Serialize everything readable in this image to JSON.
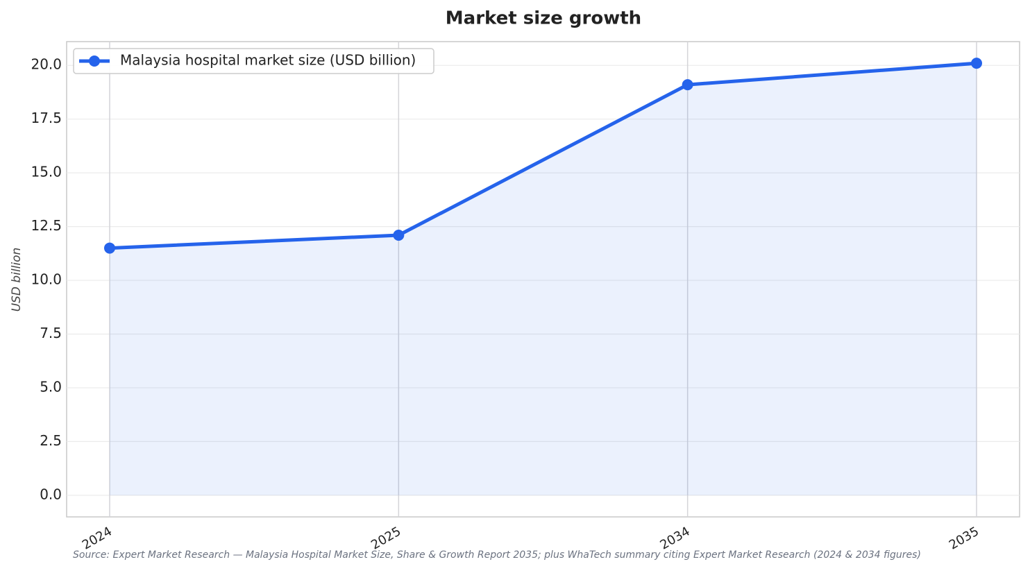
{
  "chart_data": {
    "type": "line",
    "title": "Market size growth",
    "y_label": "USD billion",
    "source": "Source: Expert Market Research — Malaysia Hospital Market Size, Share & Growth Report 2035; plus WhaTech summary citing Expert Market Research (2024 & 2034 figures)",
    "categories": [
      "2024",
      "2025",
      "2034",
      "2035"
    ],
    "series": [
      {
        "name": "Malaysia hospital market size (USD billion)",
        "color": "#2563eb",
        "values": [
          11.5,
          12.1,
          19.1,
          20.1
        ]
      }
    ],
    "area_fill": true,
    "ylim": [
      -1.005,
      21.105
    ],
    "yticks": [
      {
        "value": 0,
        "label": "0.0"
      },
      2.5,
      {
        "value": 5,
        "label": "5.0"
      },
      7.5,
      {
        "value": 10,
        "label": "10.0"
      },
      12.5,
      {
        "value": 15,
        "label": "15.0"
      },
      17.5,
      {
        "value": 20,
        "label": "20.0"
      }
    ],
    "grid": true,
    "legend": "upper left"
  }
}
